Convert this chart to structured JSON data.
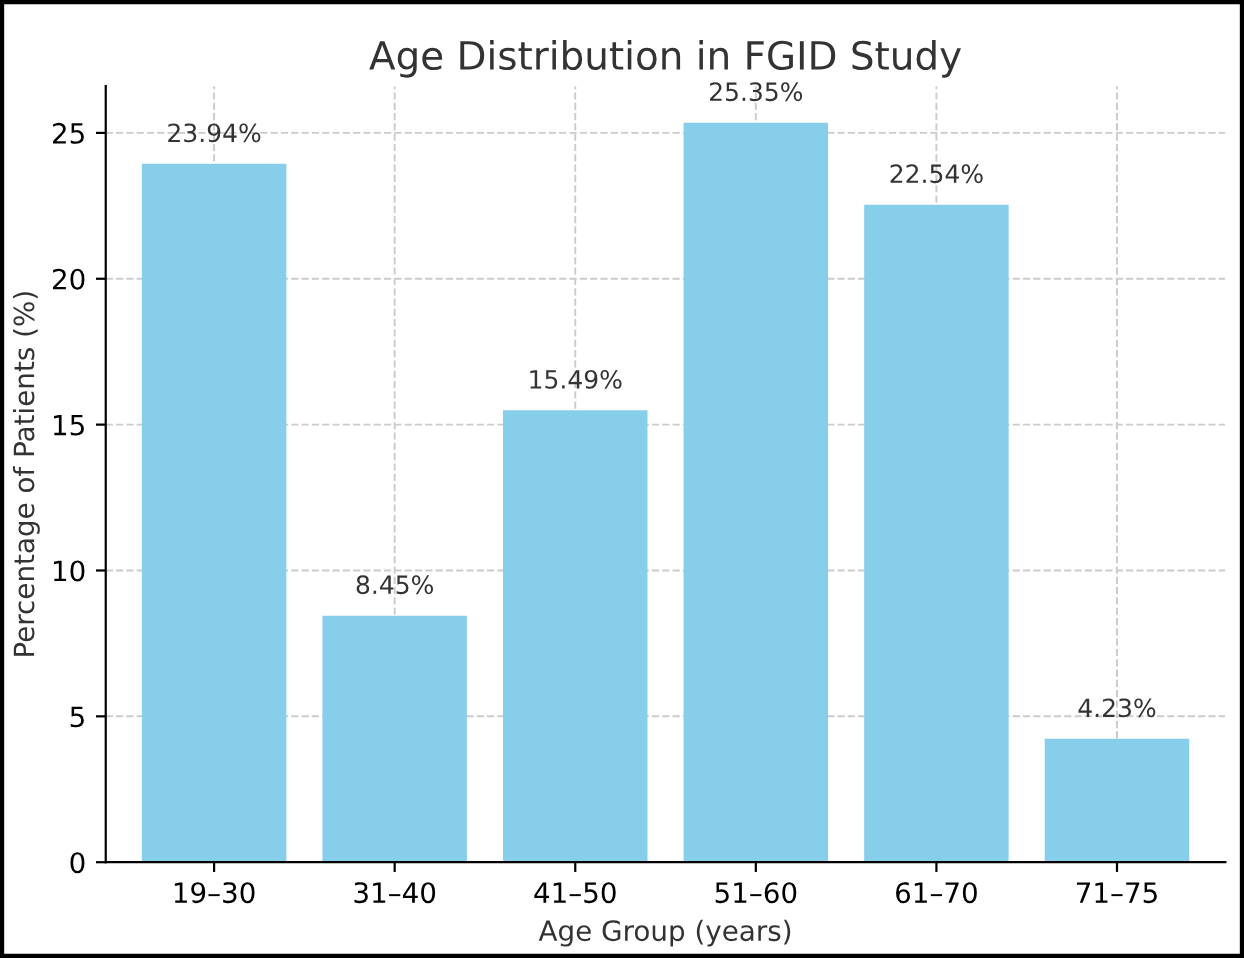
{
  "chart_data": {
    "type": "bar",
    "title": "Age Distribution in FGID Study",
    "xlabel": "Age Group (years)",
    "ylabel": "Percentage of Patients (%)",
    "categories": [
      "19–30",
      "31–40",
      "41–50",
      "51–60",
      "61–70",
      "71–75"
    ],
    "values": [
      23.94,
      8.45,
      15.49,
      25.35,
      22.54,
      4.23
    ],
    "value_labels": [
      "23.94%",
      "8.45%",
      "15.49%",
      "25.35%",
      "22.54%",
      "4.23%"
    ],
    "color": "#87ceeb",
    "ylim": [
      0,
      26.6
    ],
    "yticks": [
      0,
      5,
      10,
      15,
      20,
      25
    ],
    "grid": true
  }
}
